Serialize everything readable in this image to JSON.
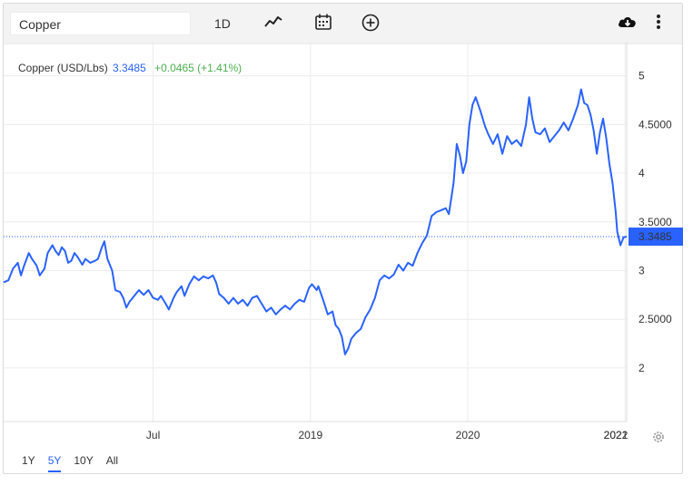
{
  "toolbar": {
    "search_value": "Copper",
    "interval_label": "1D",
    "icons": [
      "line-chart-icon",
      "calendar-icon",
      "plus-circle-icon",
      "cloud-download-icon",
      "more-vertical-icon"
    ]
  },
  "legend": {
    "name": "Copper (USD/Lbs)",
    "price": "3.3485",
    "change": "+0.0465 (+1.41%)"
  },
  "ranges": [
    "1Y",
    "5Y",
    "10Y",
    "All"
  ],
  "active_range": "5Y",
  "colors": {
    "line": "#2962ff",
    "accent": "#2962ff",
    "positive": "#4caf50"
  },
  "chart_data": {
    "type": "line",
    "series": [
      {
        "name": "Copper (USD/Lbs)",
        "points": [
          [
            2017.0,
            2.88
          ],
          [
            2017.03,
            2.9
          ],
          [
            2017.06,
            3.02
          ],
          [
            2017.09,
            3.08
          ],
          [
            2017.11,
            2.95
          ],
          [
            2017.13,
            3.05
          ],
          [
            2017.16,
            3.18
          ],
          [
            2017.18,
            3.12
          ],
          [
            2017.21,
            3.05
          ],
          [
            2017.23,
            2.95
          ],
          [
            2017.26,
            3.02
          ],
          [
            2017.28,
            3.18
          ],
          [
            2017.31,
            3.26
          ],
          [
            2017.33,
            3.2
          ],
          [
            2017.35,
            3.16
          ],
          [
            2017.37,
            3.24
          ],
          [
            2017.39,
            3.2
          ],
          [
            2017.41,
            3.08
          ],
          [
            2017.43,
            3.1
          ],
          [
            2017.45,
            3.18
          ],
          [
            2017.47,
            3.14
          ],
          [
            2017.5,
            3.06
          ],
          [
            2017.52,
            3.12
          ],
          [
            2017.55,
            3.08
          ],
          [
            2017.58,
            3.1
          ],
          [
            2017.6,
            3.12
          ],
          [
            2017.62,
            3.22
          ],
          [
            2017.64,
            3.3
          ],
          [
            2017.66,
            3.12
          ],
          [
            2017.69,
            3.0
          ],
          [
            2017.71,
            2.8
          ],
          [
            2017.74,
            2.78
          ],
          [
            2017.76,
            2.72
          ],
          [
            2017.78,
            2.62
          ],
          [
            2017.8,
            2.68
          ],
          [
            2017.83,
            2.74
          ],
          [
            2017.86,
            2.8
          ],
          [
            2017.89,
            2.75
          ],
          [
            2017.92,
            2.8
          ],
          [
            2017.95,
            2.72
          ],
          [
            2017.98,
            2.7
          ],
          [
            2018.0,
            2.74
          ],
          [
            2018.03,
            2.66
          ],
          [
            2018.05,
            2.6
          ],
          [
            2018.08,
            2.72
          ],
          [
            2018.1,
            2.78
          ],
          [
            2018.13,
            2.84
          ],
          [
            2018.15,
            2.74
          ],
          [
            2018.18,
            2.86
          ],
          [
            2018.21,
            2.94
          ],
          [
            2018.24,
            2.9
          ],
          [
            2018.27,
            2.94
          ],
          [
            2018.3,
            2.92
          ],
          [
            2018.33,
            2.95
          ],
          [
            2018.35,
            2.88
          ],
          [
            2018.37,
            2.76
          ],
          [
            2018.4,
            2.72
          ],
          [
            2018.43,
            2.66
          ],
          [
            2018.46,
            2.72
          ],
          [
            2018.49,
            2.66
          ],
          [
            2018.52,
            2.7
          ],
          [
            2018.55,
            2.64
          ],
          [
            2018.58,
            2.72
          ],
          [
            2018.61,
            2.74
          ],
          [
            2018.64,
            2.66
          ],
          [
            2018.67,
            2.58
          ],
          [
            2018.7,
            2.62
          ],
          [
            2018.73,
            2.55
          ],
          [
            2018.76,
            2.6
          ],
          [
            2018.79,
            2.64
          ],
          [
            2018.82,
            2.6
          ],
          [
            2018.85,
            2.66
          ],
          [
            2018.88,
            2.7
          ],
          [
            2018.91,
            2.68
          ],
          [
            2018.94,
            2.82
          ],
          [
            2018.96,
            2.86
          ],
          [
            2018.99,
            2.8
          ],
          [
            2019.0,
            2.84
          ],
          [
            2019.03,
            2.7
          ],
          [
            2019.06,
            2.55
          ],
          [
            2019.09,
            2.58
          ],
          [
            2019.11,
            2.44
          ],
          [
            2019.13,
            2.4
          ],
          [
            2019.15,
            2.32
          ],
          [
            2019.17,
            2.14
          ],
          [
            2019.19,
            2.2
          ],
          [
            2019.21,
            2.3
          ],
          [
            2019.24,
            2.36
          ],
          [
            2019.27,
            2.4
          ],
          [
            2019.3,
            2.52
          ],
          [
            2019.33,
            2.6
          ],
          [
            2019.36,
            2.72
          ],
          [
            2019.39,
            2.9
          ],
          [
            2019.42,
            2.95
          ],
          [
            2019.45,
            2.92
          ],
          [
            2019.48,
            2.96
          ],
          [
            2019.51,
            3.06
          ],
          [
            2019.54,
            3.0
          ],
          [
            2019.57,
            3.08
          ],
          [
            2019.6,
            3.05
          ],
          [
            2019.63,
            3.18
          ],
          [
            2019.66,
            3.28
          ],
          [
            2019.69,
            3.36
          ],
          [
            2019.72,
            3.56
          ],
          [
            2019.75,
            3.6
          ],
          [
            2019.78,
            3.62
          ],
          [
            2019.81,
            3.64
          ],
          [
            2019.83,
            3.58
          ],
          [
            2019.86,
            3.9
          ],
          [
            2019.88,
            4.3
          ],
          [
            2019.9,
            4.18
          ],
          [
            2019.92,
            4.0
          ],
          [
            2019.94,
            4.12
          ],
          [
            2019.96,
            4.5
          ],
          [
            2019.98,
            4.7
          ],
          [
            2020.0,
            4.78
          ],
          [
            2020.03,
            4.64
          ],
          [
            2020.06,
            4.48
          ],
          [
            2020.08,
            4.4
          ],
          [
            2020.11,
            4.3
          ],
          [
            2020.14,
            4.4
          ],
          [
            2020.17,
            4.2
          ],
          [
            2020.2,
            4.38
          ],
          [
            2020.23,
            4.3
          ],
          [
            2020.26,
            4.34
          ],
          [
            2020.29,
            4.28
          ],
          [
            2020.32,
            4.5
          ],
          [
            2020.34,
            4.78
          ],
          [
            2020.36,
            4.56
          ],
          [
            2020.38,
            4.42
          ],
          [
            2020.41,
            4.4
          ],
          [
            2020.44,
            4.46
          ],
          [
            2020.47,
            4.32
          ],
          [
            2020.5,
            4.38
          ],
          [
            2020.53,
            4.44
          ],
          [
            2020.56,
            4.52
          ],
          [
            2020.59,
            4.44
          ],
          [
            2020.62,
            4.56
          ],
          [
            2020.65,
            4.7
          ],
          [
            2020.67,
            4.86
          ],
          [
            2020.69,
            4.72
          ],
          [
            2020.71,
            4.7
          ],
          [
            2020.73,
            4.6
          ],
          [
            2020.75,
            4.44
          ],
          [
            2020.77,
            4.2
          ],
          [
            2020.79,
            4.42
          ],
          [
            2020.81,
            4.56
          ],
          [
            2020.83,
            4.36
          ],
          [
            2020.85,
            4.1
          ],
          [
            2020.87,
            3.9
          ],
          [
            2020.89,
            3.6
          ],
          [
            2020.9,
            3.4
          ],
          [
            2020.92,
            3.26
          ],
          [
            2020.94,
            3.34
          ],
          [
            2020.96,
            3.3485
          ]
        ]
      }
    ],
    "xlim": [
      2017.0,
      2020.96
    ],
    "ylim": [
      1.45,
      5.35
    ],
    "yticks": [
      {
        "value": 2,
        "label": "2"
      },
      {
        "value": 2.5,
        "label": "2.5000"
      },
      {
        "value": 3,
        "label": "3"
      },
      {
        "value": 3.5,
        "label": "3.5000"
      },
      {
        "value": 4,
        "label": "4"
      },
      {
        "value": 4.5,
        "label": "4.5000"
      },
      {
        "value": 5,
        "label": "5"
      }
    ],
    "xticks": [
      {
        "value": 2017.95,
        "label": "Jul"
      },
      {
        "value": 2018.95,
        "label": "2019"
      },
      {
        "value": 2019.95,
        "label": "2020"
      },
      {
        "value": 2020.95,
        "label": "2021"
      },
      {
        "value": 2021.95,
        "label": "2022"
      }
    ],
    "last_value": 3.3485,
    "last_label": "3.3485",
    "grid": true
  }
}
